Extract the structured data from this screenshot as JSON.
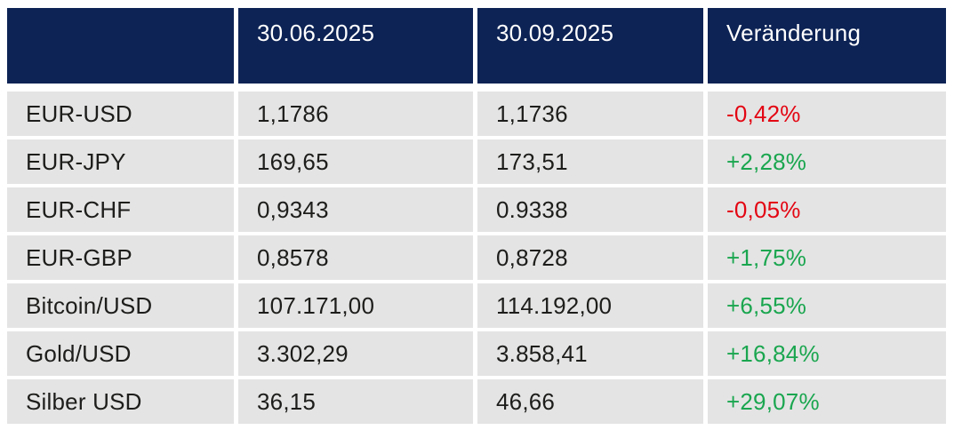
{
  "chart_data": {
    "type": "table",
    "title": "",
    "columns": [
      "",
      "30.06.2025",
      "30.09.2025",
      "Veränderung"
    ],
    "rows": [
      {
        "label": "EUR-USD",
        "v_30_06_2025": "1,1786",
        "v_30_09_2025": "1,1736",
        "change": "-0,42%",
        "direction": "down"
      },
      {
        "label": "EUR-JPY",
        "v_30_06_2025": "169,65",
        "v_30_09_2025": "173,51",
        "change": "+2,28%",
        "direction": "up"
      },
      {
        "label": "EUR-CHF",
        "v_30_06_2025": "0,9343",
        "v_30_09_2025": "0.9338",
        "change": "-0,05%",
        "direction": "down"
      },
      {
        "label": "EUR-GBP",
        "v_30_06_2025": "0,8578",
        "v_30_09_2025": "0,8728",
        "change": "+1,75%",
        "direction": "up"
      },
      {
        "label": "Bitcoin/USD",
        "v_30_06_2025": "107.171,00",
        "v_30_09_2025": "114.192,00",
        "change": "+6,55%",
        "direction": "up"
      },
      {
        "label": "Gold/USD",
        "v_30_06_2025": "3.302,29",
        "v_30_09_2025": "3.858,41",
        "change": "+16,84%",
        "direction": "up"
      },
      {
        "label": "Silber USD",
        "v_30_06_2025": "36,15",
        "v_30_09_2025": "46,66",
        "change": "+29,07%",
        "direction": "up"
      }
    ],
    "colors": {
      "header_bg": "#0d2355",
      "header_text": "#ffffff",
      "row_bg": "#e4e4e4",
      "body_text": "#1d1d1b",
      "positive": "#1aa64f",
      "negative": "#e30613"
    },
    "layout_hints": {
      "header_align": "top-left",
      "body_align": "middle-left",
      "grid": "white gaps between cells"
    }
  }
}
